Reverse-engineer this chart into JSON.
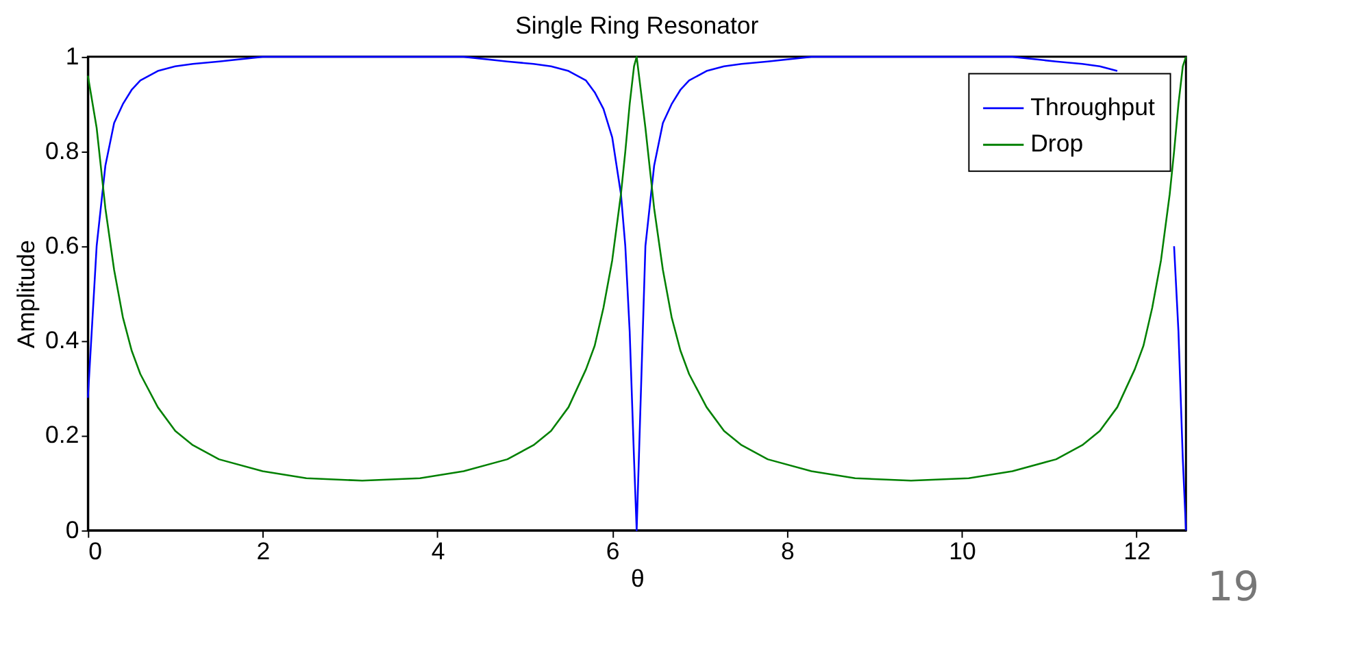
{
  "chart_data": {
    "type": "line",
    "title": "Single Ring Resonator",
    "xlabel": "θ",
    "ylabel": "Amplitude",
    "xlim": [
      0,
      12.566
    ],
    "xticks": [
      0,
      2,
      4,
      6,
      8,
      10,
      12
    ],
    "ylim": [
      0,
      1
    ],
    "yticks": [
      {
        "value": 0,
        "label": "0"
      },
      0.2,
      0.4,
      0.6,
      0.8,
      {
        "value": 1,
        "label": "1"
      }
    ],
    "grid": false,
    "legend": "top right",
    "line_style": "solid",
    "marker": "none",
    "annotations": [
      "19"
    ],
    "series": [
      {
        "name": "Throughput",
        "color": "#0000ff",
        "x": [
          0,
          0.1,
          0.2,
          0.3,
          0.4,
          0.5,
          0.6,
          0.8,
          1.0,
          1.2,
          1.5,
          2.0,
          2.5,
          3.14,
          3.8,
          4.3,
          4.8,
          5.1,
          5.3,
          5.5,
          5.7,
          5.8,
          5.9,
          6.0,
          6.1,
          6.15,
          6.2,
          6.25,
          6.28,
          6.38,
          6.48,
          6.58,
          6.68,
          6.78,
          6.88,
          7.08,
          7.28,
          7.48,
          7.78,
          8.28,
          8.78,
          9.42,
          10.08,
          10.58,
          11.08,
          11.38,
          11.58,
          11.78,
          11.98,
          12.08,
          12.18,
          12.28,
          12.38,
          12.43,
          12.48,
          12.53,
          12.566
        ],
        "values": [
          0.28,
          0.6,
          0.77,
          0.86,
          0.9,
          0.93,
          0.95,
          0.97,
          0.98,
          0.985,
          0.99,
          1,
          1,
          1,
          1,
          1,
          0.99,
          0.985,
          0.98,
          0.97,
          0.95,
          0.925,
          0.89,
          0.83,
          0.71,
          0.6,
          0.42,
          0.15,
          0,
          0.6,
          0.77,
          0.86,
          0.9,
          0.93,
          0.95,
          0.97,
          0.98,
          0.985,
          0.99,
          1,
          1,
          1,
          1,
          1,
          0.99,
          0.985,
          0.98,
          0.97,
          null,
          null,
          null,
          null,
          null,
          0.6,
          0.42,
          0.15,
          0
        ]
      },
      {
        "name": "Drop",
        "color": "#008000",
        "x": [
          0,
          0.1,
          0.2,
          0.3,
          0.4,
          0.5,
          0.6,
          0.8,
          1.0,
          1.2,
          1.5,
          2.0,
          2.5,
          3.14,
          3.8,
          4.3,
          4.8,
          5.1,
          5.3,
          5.5,
          5.7,
          5.8,
          5.9,
          6.0,
          6.1,
          6.15,
          6.2,
          6.25,
          6.28,
          6.38,
          6.48,
          6.58,
          6.68,
          6.78,
          6.88,
          7.08,
          7.28,
          7.48,
          7.78,
          8.28,
          8.78,
          9.42,
          10.08,
          10.58,
          11.08,
          11.38,
          11.58,
          11.78,
          11.98,
          12.08,
          12.18,
          12.28,
          12.38,
          12.43,
          12.48,
          12.53,
          12.566
        ],
        "values": [
          0.96,
          0.85,
          0.68,
          0.55,
          0.45,
          0.38,
          0.33,
          0.26,
          0.21,
          0.18,
          0.15,
          0.125,
          0.11,
          0.105,
          0.11,
          0.125,
          0.15,
          0.18,
          0.21,
          0.26,
          0.34,
          0.39,
          0.47,
          0.57,
          0.71,
          0.8,
          0.9,
          0.98,
          1,
          0.85,
          0.68,
          0.55,
          0.45,
          0.38,
          0.33,
          0.26,
          0.21,
          0.18,
          0.15,
          0.125,
          0.11,
          0.105,
          0.11,
          0.125,
          0.15,
          0.18,
          0.21,
          0.26,
          0.34,
          0.39,
          0.47,
          0.57,
          0.71,
          0.8,
          0.9,
          0.98,
          1
        ]
      }
    ]
  }
}
